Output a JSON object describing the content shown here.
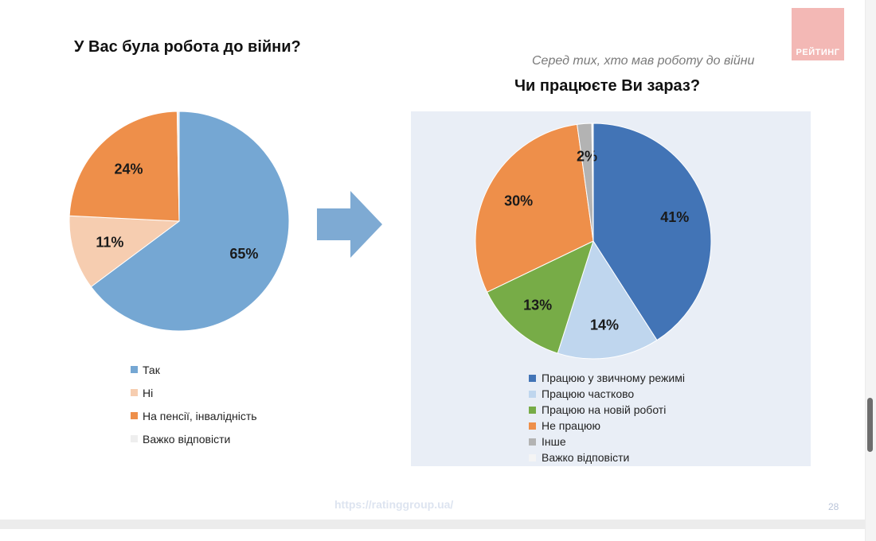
{
  "left": {
    "title": "У Вас була робота до війни?"
  },
  "right": {
    "subtitle": "Серед тих, хто мав роботу до війни",
    "title": "Чи працюєте Ви зараз?"
  },
  "logo": {
    "text": "РЕЙТИНГ"
  },
  "footer": {
    "url": "https://ratinggroup.ua/",
    "page": "28"
  },
  "chart_data": [
    {
      "type": "pie",
      "title": "У Вас була робота до війни?",
      "legend_position": "bottom",
      "slices": [
        {
          "label": "Так",
          "value": 65,
          "display": "65%",
          "color": "#75a7d3",
          "show_label": true
        },
        {
          "label": "Ні",
          "value": 11,
          "display": "11%",
          "color": "#f6cdb0",
          "show_label": true
        },
        {
          "label": "На пенсії, інвалідність",
          "value": 24,
          "display": "24%",
          "color": "#ee8f4a",
          "show_label": true
        },
        {
          "label": "Важко відповісти",
          "value": 0.3,
          "display": "",
          "color": "#eeeeee",
          "show_label": false
        }
      ]
    },
    {
      "type": "pie",
      "title": "Чи працюєте Ви зараз?",
      "subtitle": "Серед тих, хто мав роботу до війни",
      "legend_position": "bottom",
      "slices": [
        {
          "label": "Працюю у звичному режимі",
          "value": 41,
          "display": "41%",
          "color": "#4274b6",
          "show_label": true
        },
        {
          "label": "Працюю частково",
          "value": 14,
          "display": "14%",
          "color": "#bfd6ee",
          "show_label": true
        },
        {
          "label": "Працюю на новій роботі",
          "value": 13,
          "display": "13%",
          "color": "#77ac47",
          "show_label": true
        },
        {
          "label": "Не працюю",
          "value": 30,
          "display": "30%",
          "color": "#ee8f4a",
          "show_label": true
        },
        {
          "label": "Інше",
          "value": 2,
          "display": "2%",
          "color": "#b3b3b3",
          "show_label": true
        },
        {
          "label": "Важко відповісти",
          "value": 0.2,
          "display": "",
          "color": "#f4f4f4",
          "show_label": false
        }
      ]
    }
  ]
}
